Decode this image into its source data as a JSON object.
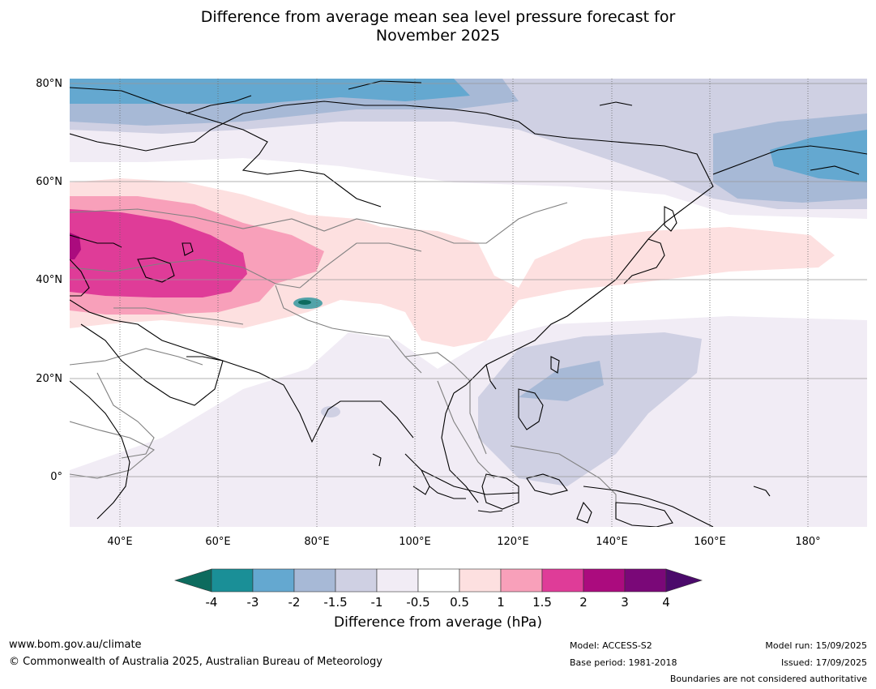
{
  "title": {
    "line1": "Difference from average mean sea level pressure forecast for",
    "line2": "November 2025"
  },
  "axes": {
    "lat_labels": [
      "80°N",
      "60°N",
      "40°N",
      "20°N",
      "0°"
    ],
    "lon_labels": [
      "40°E",
      "60°E",
      "80°E",
      "100°E",
      "120°E",
      "140°E",
      "160°E",
      "180°"
    ],
    "lat_range": [
      -10,
      80
    ],
    "lon_range": [
      30,
      192
    ]
  },
  "colorbar": {
    "title": "Difference from average (hPa)",
    "ticks": [
      "-4",
      "-3",
      "-2",
      "-1.5",
      "-1",
      "-0.5",
      "0.5",
      "1",
      "1.5",
      "2",
      "3",
      "4"
    ],
    "colors": {
      "below_min": "#0d6b5e",
      "bins": [
        "#1a8f97",
        "#64a8d0",
        "#a7b9d6",
        "#cfd0e3",
        "#f1ecf5",
        "#ffffff",
        "#fde0e0",
        "#f8a0ba",
        "#df3c98",
        "#ab0b7e",
        "#7a0878"
      ],
      "above_max": "#4b0a6b"
    }
  },
  "footer": {
    "website": "www.bom.gov.au/climate",
    "copyright": "© Commonwealth of Australia 2025, Australian Bureau of Meteorology",
    "model": "Model: ACCESS-S2",
    "base_period": "Base period: 1981-2018",
    "model_run": "Model run: 15/09/2025",
    "issued": "Issued: 17/09/2025",
    "disclaimer": "Boundaries are not considered authoritative"
  }
}
